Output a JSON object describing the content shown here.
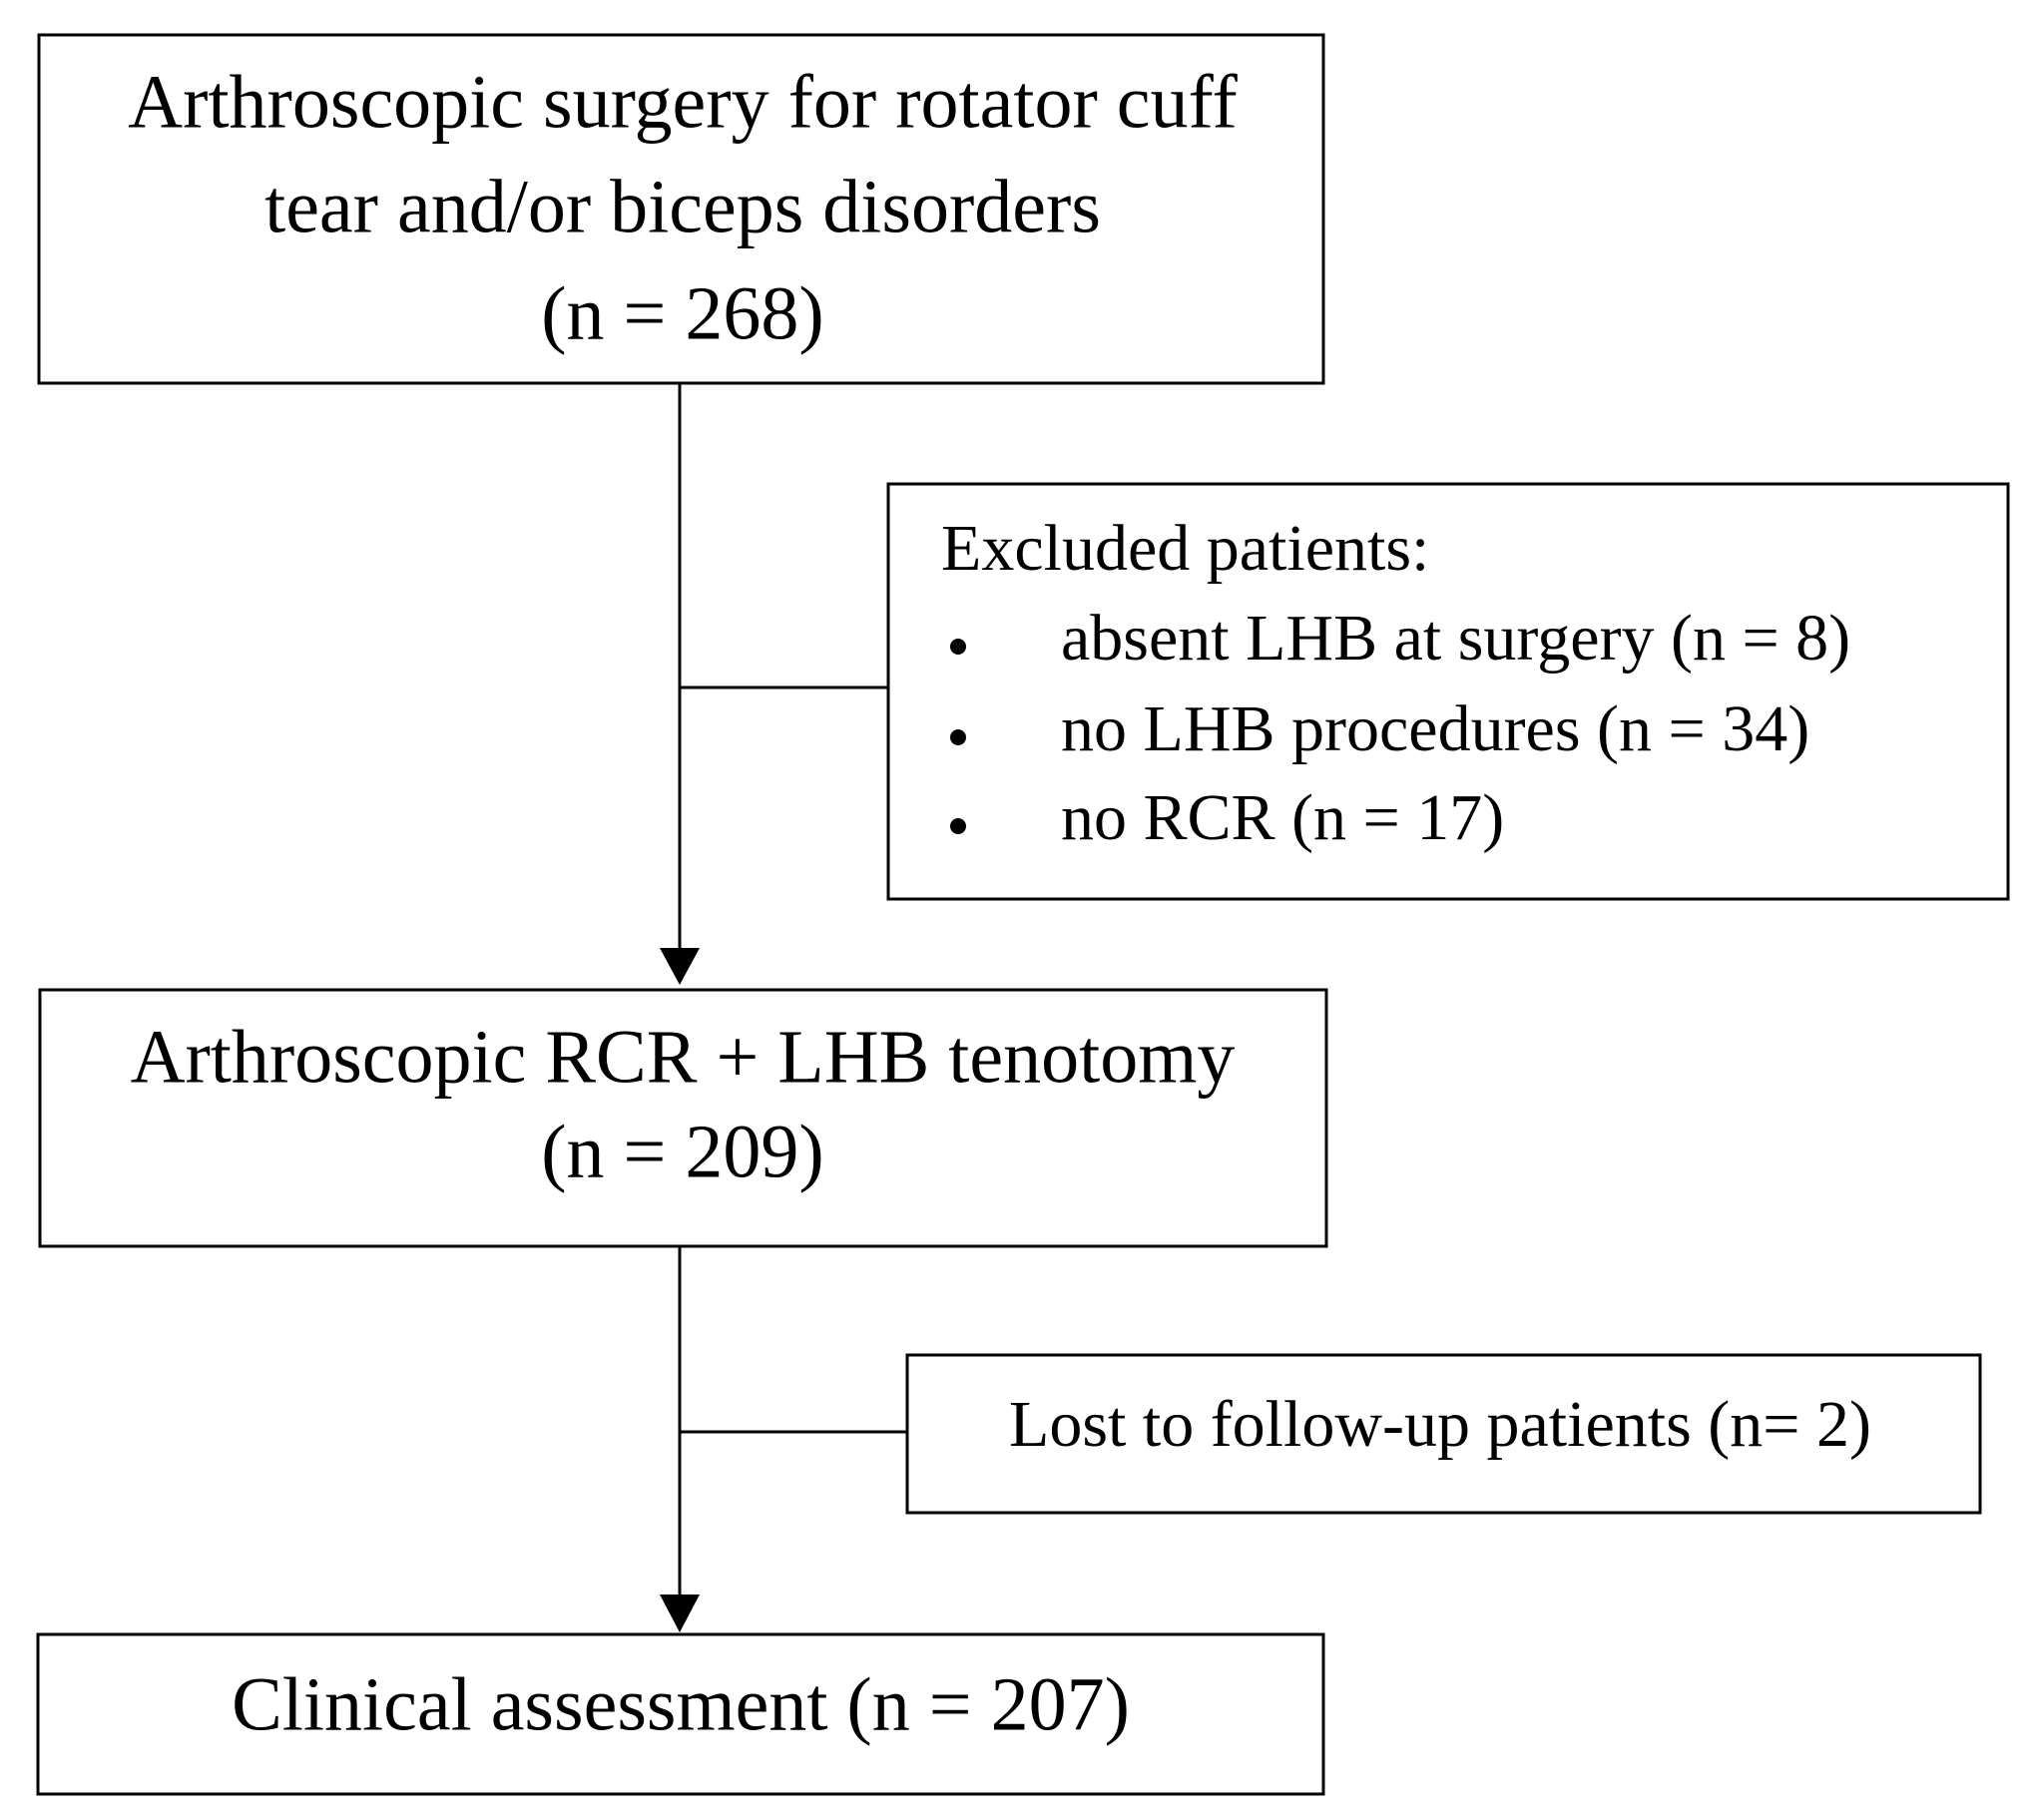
{
  "nodes": [
    {
      "lines": [
        "Arthroscopic surgery for rotator cuff",
        "tear and/or biceps disorders",
        "(n = 268)"
      ]
    },
    {
      "title": "Excluded patients:",
      "items": [
        "absent LHB at surgery (n = 8)",
        "no LHB procedures (n = 34)",
        "no RCR (n = 17)"
      ]
    },
    {
      "lines": [
        "Arthroscopic RCR + LHB tenotomy",
        "(n = 209)"
      ]
    },
    {
      "lines": [
        "Lost to follow-up patients (n= 2)"
      ]
    },
    {
      "lines": [
        "Clinical assessment (n = 207)"
      ]
    }
  ]
}
